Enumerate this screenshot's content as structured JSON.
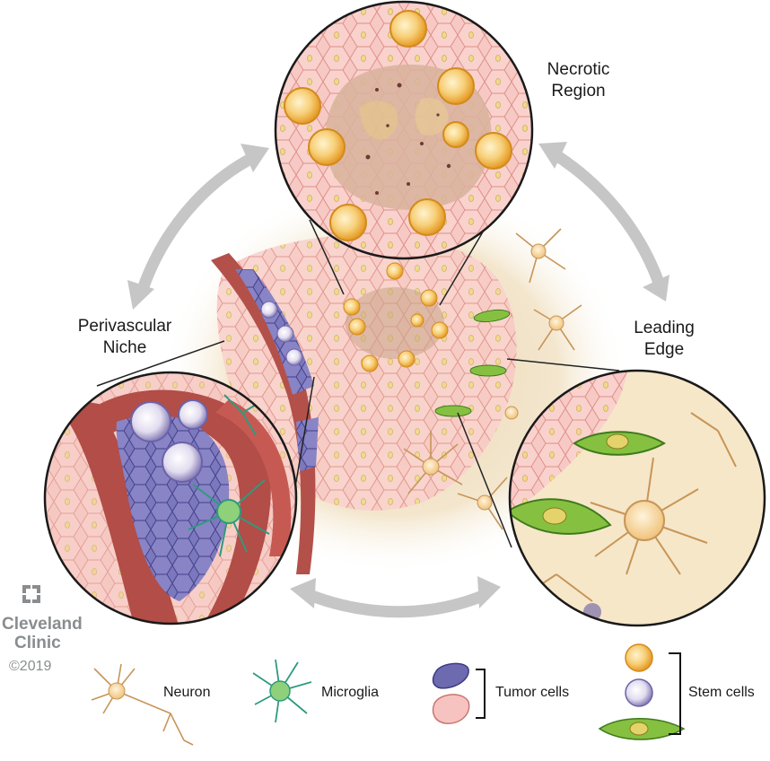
{
  "regions": {
    "necrotic": {
      "line1": "Necrotic",
      "line2": "Region"
    },
    "perivascular": {
      "line1": "Perivascular",
      "line2": "Niche"
    },
    "leading_edge": {
      "line1": "Leading",
      "line2": "Edge"
    }
  },
  "legend": {
    "neuron": "Neuron",
    "microglia": "Microglia",
    "tumor_cells": "Tumor cells",
    "stem_cells": "Stem cells"
  },
  "brand": {
    "line1": "Cleveland",
    "line2": "Clinic",
    "copyright": "©2019"
  },
  "colors": {
    "tumor_pink": "#f6c3c0",
    "tumor_purple": "#6e6ab0",
    "vessel_red": "#b3504a",
    "stem_orange": "#f2b43a",
    "stem_green": "#7fb83a",
    "microglia_teal": "#2f9a7f",
    "neuron_tan": "#e8c48a",
    "arrow_gray": "#c4c4c4"
  }
}
